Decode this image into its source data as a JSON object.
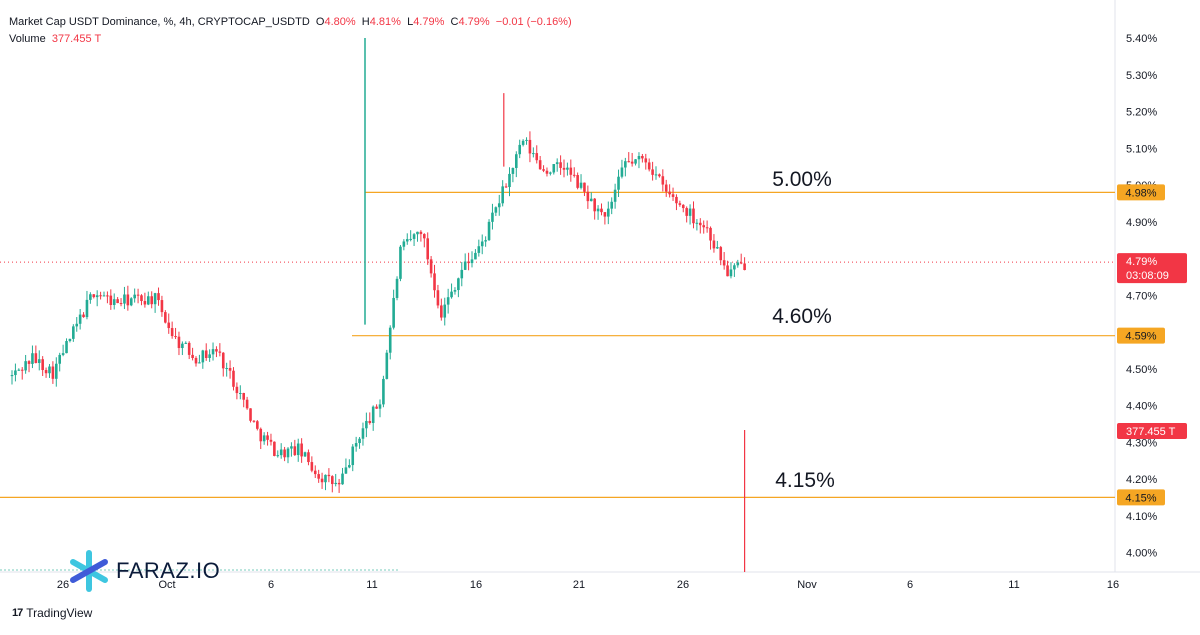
{
  "header": {
    "symbol": "Market Cap USDT Dominance, %, 4h, CRYPTOCAP_USDTD",
    "o_label": "O",
    "o_value": "4.80%",
    "h_label": "H",
    "h_value": "4.81%",
    "l_label": "L",
    "l_value": "4.79%",
    "c_label": "C",
    "c_value": "4.79%",
    "change": "−0.01 (−0.16%)",
    "volume_label": "Volume",
    "volume_value": "377.455 T"
  },
  "branding": {
    "tradingview": "TradingView",
    "watermark": "FARAZ.IO"
  },
  "colors": {
    "up": "#22ab94",
    "down": "#f23645",
    "level": "#f5a623",
    "grid": "#f0f3fa",
    "axis_text": "#131722"
  },
  "chart_data": {
    "type": "candlestick",
    "y_axis_ticks": [
      "5.40%",
      "5.30%",
      "5.20%",
      "5.10%",
      "5.00%",
      "4.90%",
      "4.80%",
      "4.70%",
      "4.60%",
      "4.50%",
      "4.40%",
      "4.30%",
      "4.20%",
      "4.10%",
      "4.00%"
    ],
    "ylim": [
      3.95,
      5.45
    ],
    "x_axis_ticks": [
      "26",
      "Oct",
      "6",
      "11",
      "16",
      "21",
      "26",
      "Nov",
      "6",
      "11",
      "16"
    ],
    "current_price": "4.79%",
    "countdown": "03:08:09",
    "volume_badge": "377.455 T",
    "levels": [
      {
        "value": 4.98,
        "badge": "4.98%",
        "label": "5.00%"
      },
      {
        "value": 4.59,
        "badge": "4.59%",
        "label": "4.60%"
      },
      {
        "value": 4.15,
        "badge": "4.15%",
        "label": "4.15%"
      }
    ],
    "close_path": [
      [
        "2024-09-22",
        4.48
      ],
      [
        "2024-09-23",
        4.53
      ],
      [
        "2024-09-24",
        4.49
      ],
      [
        "2024-09-25",
        4.6
      ],
      [
        "2024-09-26",
        4.71
      ],
      [
        "2024-09-27",
        4.68
      ],
      [
        "2024-09-28",
        4.69
      ],
      [
        "2024-09-29",
        4.69
      ],
      [
        "2024-09-30",
        4.58
      ],
      [
        "2024-10-01",
        4.53
      ],
      [
        "2024-10-02",
        4.55
      ],
      [
        "2024-10-03",
        4.45
      ],
      [
        "2024-10-04",
        4.33
      ],
      [
        "2024-10-05",
        4.27
      ],
      [
        "2024-10-06",
        4.28
      ],
      [
        "2024-10-07",
        4.21
      ],
      [
        "2024-10-08",
        4.18
      ],
      [
        "2024-10-09",
        4.32
      ],
      [
        "2024-10-10",
        4.41
      ],
      [
        "2024-10-11",
        4.82
      ],
      [
        "2024-10-12",
        4.88
      ],
      [
        "2024-10-13",
        4.65
      ],
      [
        "2024-10-14",
        4.77
      ],
      [
        "2024-10-15",
        4.84
      ],
      [
        "2024-10-16",
        4.98
      ],
      [
        "2024-10-17",
        5.12
      ],
      [
        "2024-10-18",
        5.04
      ],
      [
        "2024-10-19",
        5.05
      ],
      [
        "2024-10-20",
        4.98
      ],
      [
        "2024-10-21",
        4.9
      ],
      [
        "2024-10-22",
        5.06
      ],
      [
        "2024-10-23",
        5.07
      ],
      [
        "2024-10-24",
        4.98
      ],
      [
        "2024-10-25",
        4.93
      ],
      [
        "2024-10-26",
        4.88
      ],
      [
        "2024-10-27",
        4.76
      ],
      [
        "2024-10-28",
        4.79
      ]
    ]
  }
}
